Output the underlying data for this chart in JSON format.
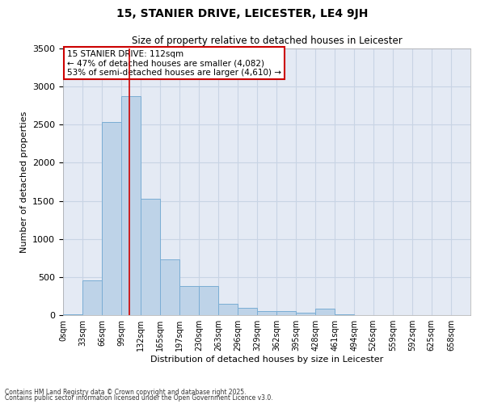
{
  "title": "15, STANIER DRIVE, LEICESTER, LE4 9JH",
  "subtitle": "Size of property relative to detached houses in Leicester",
  "xlabel": "Distribution of detached houses by size in Leicester",
  "ylabel": "Number of detached properties",
  "bin_labels": [
    "0sqm",
    "33sqm",
    "66sqm",
    "99sqm",
    "132sqm",
    "165sqm",
    "197sqm",
    "230sqm",
    "263sqm",
    "296sqm",
    "329sqm",
    "362sqm",
    "395sqm",
    "428sqm",
    "461sqm",
    "494sqm",
    "526sqm",
    "559sqm",
    "592sqm",
    "625sqm",
    "658sqm"
  ],
  "bar_values": [
    10,
    460,
    2540,
    2870,
    1530,
    730,
    380,
    380,
    150,
    95,
    50,
    55,
    30,
    85,
    10,
    5,
    5,
    5,
    5,
    5,
    0
  ],
  "bar_color": "#bed3e8",
  "bar_edge_color": "#7aadd4",
  "property_value": 112,
  "property_label": "15 STANIER DRIVE: 112sqm",
  "annotation_line1": "← 47% of detached houses are smaller (4,082)",
  "annotation_line2": "53% of semi-detached houses are larger (4,610) →",
  "annotation_box_color": "#cc0000",
  "vline_color": "#cc0000",
  "ylim": [
    0,
    3500
  ],
  "yticks": [
    0,
    500,
    1000,
    1500,
    2000,
    2500,
    3000,
    3500
  ],
  "grid_color": "#c8d4e4",
  "background_color": "#e4eaf4",
  "footnote1": "Contains HM Land Registry data © Crown copyright and database right 2025.",
  "footnote2": "Contains public sector information licensed under the Open Government Licence v3.0."
}
